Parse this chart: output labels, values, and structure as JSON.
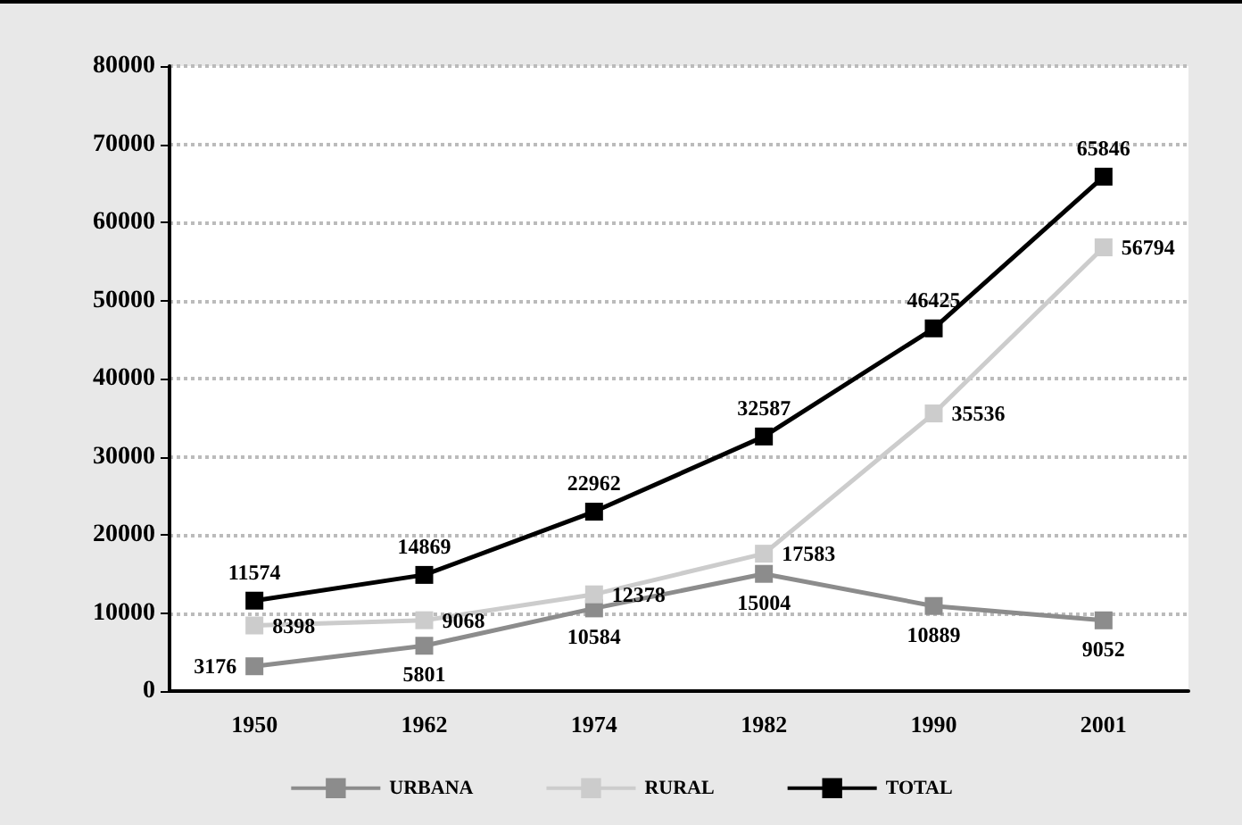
{
  "chart_data": {
    "type": "line",
    "categories": [
      "1950",
      "1962",
      "1974",
      "1982",
      "1990",
      "2001"
    ],
    "series": [
      {
        "name": "URBANA",
        "color": "#8c8c8c",
        "values": [
          3176,
          5801,
          10584,
          15004,
          10889,
          9052
        ]
      },
      {
        "name": "RURAL",
        "color": "#cccccc",
        "values": [
          8398,
          9068,
          12378,
          17583,
          35536,
          56794
        ]
      },
      {
        "name": "TOTAL",
        "color": "#000000",
        "values": [
          11574,
          14869,
          22962,
          32587,
          46425,
          65846
        ]
      }
    ],
    "ylim": [
      0,
      80000
    ],
    "yticks": [
      0,
      10000,
      20000,
      30000,
      40000,
      50000,
      60000,
      70000,
      80000
    ],
    "grid": "y",
    "legend": "bottom",
    "marker": "square",
    "data_labels": true
  }
}
